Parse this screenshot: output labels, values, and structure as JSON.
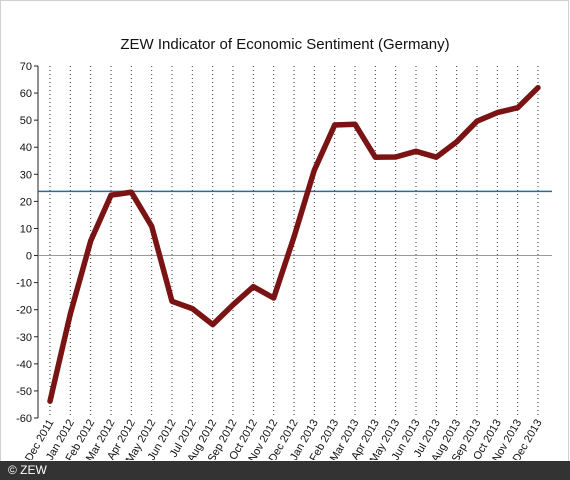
{
  "chart_data": {
    "type": "line",
    "title": "ZEW Indicator of Economic Sentiment (Germany)",
    "xlabel": "",
    "ylabel": "",
    "ylim": [
      -60,
      70
    ],
    "yticks": [
      -60,
      -50,
      -40,
      -30,
      -20,
      -10,
      0,
      10,
      20,
      30,
      40,
      50,
      60,
      70
    ],
    "categories": [
      "Dec 2011",
      "Jan 2012",
      "Feb 2012",
      "Mar 2012",
      "Apr 2012",
      "May 2012",
      "Jun 2012",
      "Jul 2012",
      "Aug 2012",
      "Sep 2012",
      "Oct 2012",
      "Nov 2012",
      "Dec 2012",
      "Jan 2013",
      "Feb 2013",
      "Mar 2013",
      "Apr 2013",
      "May 2013",
      "Jun 2013",
      "Jul 2013",
      "Aug 2013",
      "Sep 2013",
      "Oct 2013",
      "Nov 2013",
      "Dec 2013"
    ],
    "series": [
      {
        "values": [
          -53.8,
          -21.6,
          5.4,
          22.3,
          23.4,
          10.8,
          -16.9,
          -19.6,
          -25.5,
          -18.2,
          -11.5,
          -15.7,
          6.9,
          31.5,
          48.2,
          48.5,
          36.3,
          36.4,
          38.5,
          36.3,
          42.0,
          49.6,
          52.8,
          54.6,
          62.0
        ]
      }
    ],
    "reference_line": 23.7,
    "grid": "vertical dotted",
    "colors": {
      "series": "#7a1313",
      "reference_line": "#2e6a9e",
      "zero_line": "#999999",
      "grid": "#333333"
    }
  },
  "footer": {
    "copyright": "© ZEW"
  }
}
